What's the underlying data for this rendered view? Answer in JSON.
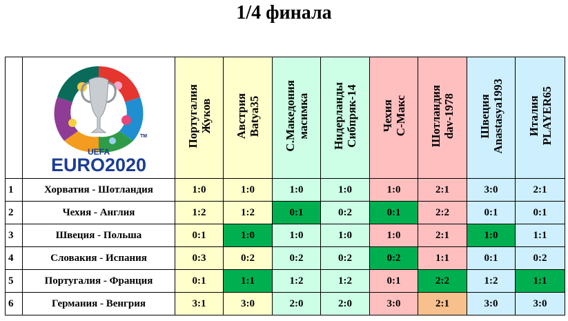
{
  "title": "1/4 финала",
  "logo": {
    "line1": "UEFA",
    "line2": "EURO2020",
    "tm": "TM"
  },
  "colors": {
    "yellow": "#ffffcc",
    "mint": "#ccffe6",
    "pink": "#ffbfbf",
    "lightblue": "#cdeffe",
    "green": "#00b050",
    "orange": "#f8c08c"
  },
  "players": [
    {
      "country": "Португалия",
      "name": "Жуков",
      "color": "yellow"
    },
    {
      "country": "Австрия",
      "name": "Batya35",
      "color": "yellow"
    },
    {
      "country": "С.Македония",
      "name": "масимка",
      "color": "mint"
    },
    {
      "country": "Нидерланды",
      "name": "Сибпряк-14",
      "color": "mint"
    },
    {
      "country": "Чехия",
      "name": "С-Макс",
      "color": "pink"
    },
    {
      "country": "Шотландия",
      "name": "dav-1978",
      "color": "pink"
    },
    {
      "country": "Швеция",
      "name": "Anastasya1993",
      "color": "lightblue"
    },
    {
      "country": "Италия",
      "name": "PLAYER65",
      "color": "lightblue"
    }
  ],
  "rows": [
    {
      "num": "1",
      "match": "Хорватия - Шотландия",
      "scores": [
        "1:0",
        "1:0",
        "1:0",
        "1:0",
        "1:0",
        "2:1",
        "3:0",
        "2:1"
      ],
      "highlight": [
        "",
        "",
        "",
        "",
        "",
        "",
        "",
        ""
      ]
    },
    {
      "num": "2",
      "match": "Чехия - Англия",
      "scores": [
        "1:2",
        "1:2",
        "0:1",
        "0:2",
        "0:1",
        "2:2",
        "0:1",
        "0:1"
      ],
      "highlight": [
        "",
        "",
        "green",
        "",
        "green",
        "",
        "",
        ""
      ]
    },
    {
      "num": "3",
      "match": "Швеция - Польша",
      "scores": [
        "0:1",
        "1:0",
        "1:0",
        "1:0",
        "1:0",
        "2:1",
        "1:0",
        "1:1"
      ],
      "highlight": [
        "",
        "green",
        "",
        "",
        "",
        "",
        "green",
        ""
      ]
    },
    {
      "num": "4",
      "match": "Словакия - Испания",
      "scores": [
        "0:3",
        "0:2",
        "0:2",
        "0:2",
        "0:2",
        "1:1",
        "0:1",
        "0:2"
      ],
      "highlight": [
        "",
        "",
        "",
        "",
        "green",
        "",
        "",
        ""
      ]
    },
    {
      "num": "5",
      "match": "Португалия - Франция",
      "scores": [
        "0:1",
        "1:1",
        "1:2",
        "1:2",
        "0:1",
        "2:2",
        "1:2",
        "1:1"
      ],
      "highlight": [
        "",
        "green",
        "",
        "",
        "",
        "green",
        "",
        "green"
      ]
    },
    {
      "num": "6",
      "match": "Германия - Венгрия",
      "scores": [
        "3:1",
        "3:0",
        "2:0",
        "2:0",
        "3:0",
        "2:1",
        "3:0",
        "3:0"
      ],
      "highlight": [
        "",
        "",
        "",
        "",
        "",
        "orange",
        "",
        ""
      ]
    }
  ]
}
